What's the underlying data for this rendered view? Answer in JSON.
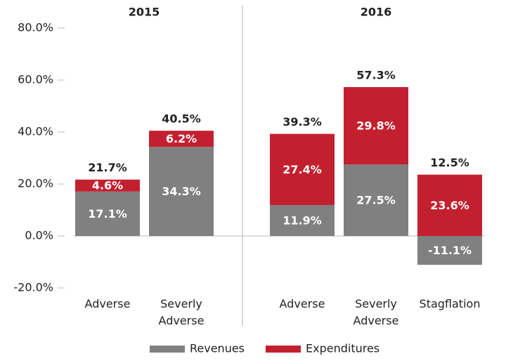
{
  "chart_data": {
    "type": "stacked-bar",
    "groups": [
      "2015",
      "2016"
    ],
    "categories": [
      "Adverse",
      "Severly Adverse",
      "Adverse",
      "Severly Adverse",
      "Stagflation"
    ],
    "series": [
      {
        "name": "Revenues",
        "color": "#808080",
        "values": [
          17.1,
          34.3,
          11.9,
          27.5,
          -11.1
        ],
        "value_labels": [
          "17.1%",
          "34.3%",
          "11.9%",
          "27.5%",
          "-11.1%"
        ]
      },
      {
        "name": "Expenditures",
        "color": "#c3202f",
        "values": [
          4.6,
          6.2,
          27.4,
          29.8,
          23.6
        ],
        "value_labels": [
          "4.6%",
          "6.2%",
          "27.4%",
          "29.8%",
          "23.6%"
        ]
      }
    ],
    "totals": {
      "values": [
        21.7,
        40.5,
        39.3,
        57.3,
        12.5
      ],
      "value_labels": [
        "21.7%",
        "40.5%",
        "39.3%",
        "57.3%",
        "12.5%"
      ]
    },
    "ylim": [
      -20,
      80
    ],
    "yticks": [
      {
        "value": -20,
        "label": "-20.0%"
      },
      {
        "value": 0,
        "label": "0.0%"
      },
      {
        "value": 20,
        "label": "20.0%"
      },
      {
        "value": 40,
        "label": "40.0%"
      },
      {
        "value": 60,
        "label": "60.0%"
      },
      {
        "value": 80,
        "label": "80.0%"
      }
    ],
    "grid": false,
    "legend": "bottom"
  }
}
